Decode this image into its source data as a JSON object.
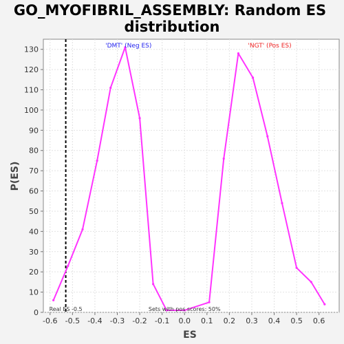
{
  "chart_data": {
    "type": "line",
    "title_lines": [
      "GO_MYOFIBRIL_ASSEMBLY: Random ES",
      "distribution"
    ],
    "xlabel": "ES",
    "ylabel": "P(ES)",
    "xlim": [
      -0.63,
      0.69
    ],
    "ylim": [
      0,
      135
    ],
    "x_ticks": [
      -0.6,
      -0.5,
      -0.4,
      -0.3,
      -0.2,
      -0.1,
      0.0,
      0.1,
      0.2,
      0.3,
      0.4,
      0.5,
      0.6
    ],
    "x_tick_labels": [
      "-0.6",
      "-0.5",
      "-0.4",
      "-0.3",
      "-0.2",
      "-0.1",
      "0.0",
      "0.1",
      "0.2",
      "0.3",
      "0.4",
      "0.5",
      "0.6"
    ],
    "y_ticks": [
      0,
      10,
      20,
      30,
      40,
      50,
      60,
      70,
      80,
      90,
      100,
      110,
      120,
      130
    ],
    "y_tick_labels": [
      "0",
      "10",
      "20",
      "30",
      "40",
      "50",
      "60",
      "70",
      "80",
      "90",
      "100",
      "110",
      "120",
      "130"
    ],
    "grid": true,
    "series": [
      {
        "color": "#ff33ff",
        "x": [
          -0.585,
          -0.52,
          -0.455,
          -0.39,
          -0.33,
          -0.265,
          -0.2,
          -0.14,
          -0.08,
          0.0,
          0.11,
          0.175,
          0.24,
          0.305,
          0.37,
          0.435,
          0.5,
          0.565,
          0.625
        ],
        "y": [
          6,
          23,
          41,
          75,
          111,
          131,
          96,
          14,
          1,
          1,
          5,
          76,
          128,
          116,
          87,
          54,
          22,
          15,
          4
        ]
      }
    ],
    "real_es": {
      "x": -0.53,
      "label": "Real ES -0.5"
    },
    "annotations": {
      "neg": {
        "text": "'DMT' (Neg ES)",
        "color": "#2222ee",
        "x": -0.25
      },
      "pos": {
        "text": "'NGT' (Pos ES)",
        "color": "#ee2222",
        "x": 0.38
      },
      "footer": "Sets with pos scores: 50%"
    }
  }
}
